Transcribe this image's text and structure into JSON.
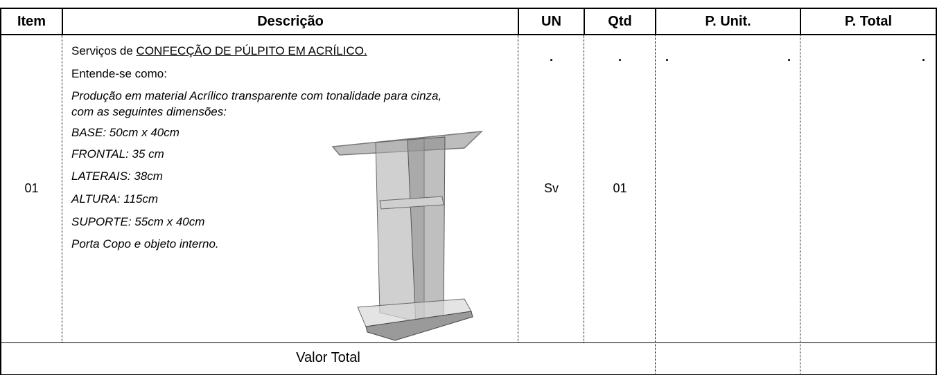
{
  "table": {
    "headers": [
      "Item",
      "Descrição",
      "UN",
      "Qtd",
      "P. Unit.",
      "P. Total"
    ],
    "rows": [
      {
        "item": "01",
        "description": {
          "prefix": "Serviços de ",
          "title": "CONFECÇÃO DE PÚLPITO EM ACRÍLICO.",
          "intro": "Entende-se como:",
          "details": [
            "Produção em material Acrílico transparente com tonalidade para cinza,",
            "com as seguintes dimensões:",
            "BASE: 50cm x 40cm",
            "FRONTAL: 35 cm",
            "LATERAIS: 38cm",
            "ALTURA: 115cm",
            "SUPORTE: 55cm x 40cm",
            "Porta Copo e objeto interno."
          ]
        },
        "un": "Sv",
        "qtd": "01",
        "marks": {
          "un": ".",
          "qtd": ".",
          "unit": [
            ".",
            "."
          ],
          "total": "."
        }
      }
    ],
    "footer": "Valor Total"
  }
}
